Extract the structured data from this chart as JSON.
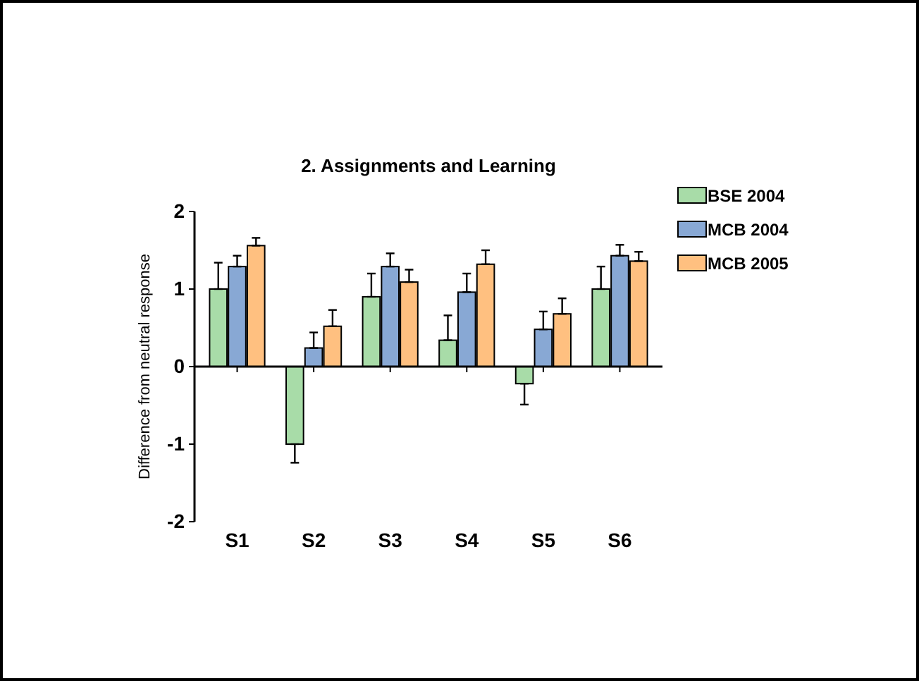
{
  "chart_data": {
    "type": "bar",
    "title": "2. Assignments and Learning",
    "ylabel": "Difference from neutral response",
    "categories": [
      "S1",
      "S2",
      "S3",
      "S4",
      "S5",
      "S6"
    ],
    "series": [
      {
        "name": "BSE 2004",
        "color": "#a8dca8",
        "values": [
          1.0,
          -1.0,
          0.9,
          0.34,
          -0.22,
          1.0
        ],
        "errors": [
          [
            1.0,
            1.34
          ],
          [
            -1.24,
            -1.0
          ],
          [
            0.9,
            1.2
          ],
          [
            0.34,
            0.66
          ],
          [
            -0.49,
            -0.22
          ],
          [
            1.0,
            1.29
          ]
        ]
      },
      {
        "name": "MCB 2004",
        "color": "#88a8d4",
        "values": [
          1.29,
          0.24,
          1.29,
          0.96,
          0.48,
          1.43
        ],
        "errors": [
          [
            1.29,
            1.43
          ],
          [
            0.24,
            0.44
          ],
          [
            1.29,
            1.46
          ],
          [
            0.96,
            1.2
          ],
          [
            0.48,
            0.71
          ],
          [
            1.43,
            1.57
          ]
        ]
      },
      {
        "name": "MCB 2005",
        "color": "#ffc080",
        "values": [
          1.56,
          0.52,
          1.09,
          1.32,
          0.68,
          1.36
        ],
        "errors": [
          [
            1.56,
            1.66
          ],
          [
            0.52,
            0.73
          ],
          [
            1.09,
            1.25
          ],
          [
            1.32,
            1.5
          ],
          [
            0.68,
            0.88
          ],
          [
            1.36,
            1.48
          ]
        ]
      }
    ],
    "ylim": [
      -2,
      2
    ],
    "yticks": [
      -2,
      -1,
      0,
      1,
      2
    ],
    "legend": "top right"
  }
}
